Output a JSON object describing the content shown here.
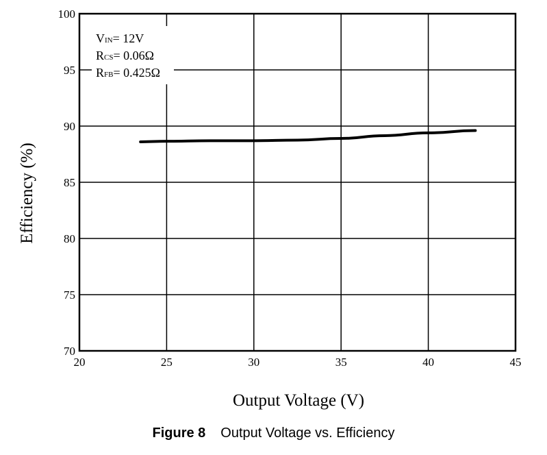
{
  "chart_data": {
    "type": "line",
    "xlabel": "Output Voltage (V)",
    "ylabel": "Efficiency (%)",
    "xlim": [
      20,
      45
    ],
    "ylim": [
      70,
      100
    ],
    "x_ticks": [
      20,
      25,
      30,
      35,
      40,
      45
    ],
    "y_ticks": [
      70,
      75,
      80,
      85,
      90,
      95,
      100
    ],
    "grid": true,
    "annotation": [
      {
        "main": "V",
        "sub": "IN",
        "rest": "= 12V"
      },
      {
        "main": "R",
        "sub": "CS",
        "rest": "= 0.06Ω"
      },
      {
        "main": "R",
        "sub": "FB",
        "rest": "= 0.425Ω"
      }
    ],
    "series": [
      {
        "color": "#000000",
        "points": [
          [
            23.5,
            88.6
          ],
          [
            25,
            88.65
          ],
          [
            27.5,
            88.7
          ],
          [
            30,
            88.7
          ],
          [
            32.5,
            88.75
          ],
          [
            35,
            88.9
          ],
          [
            37.5,
            89.15
          ],
          [
            40,
            89.4
          ],
          [
            42.7,
            89.6
          ]
        ]
      }
    ]
  },
  "caption": {
    "number": "Figure 8",
    "text": "Output Voltage vs. Efficiency"
  }
}
